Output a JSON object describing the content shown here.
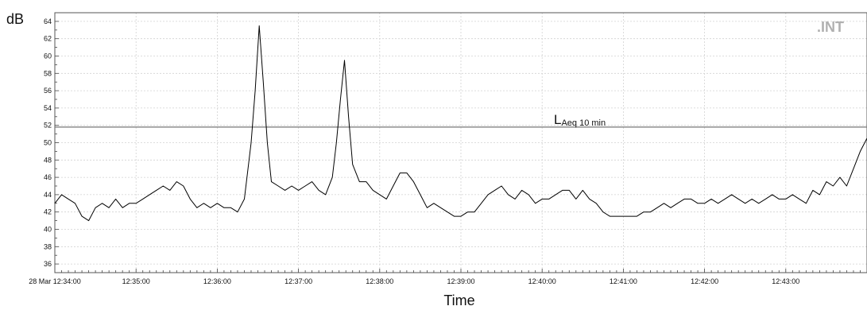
{
  "chart_data": {
    "type": "line",
    "ylabel": "dB",
    "xlabel": "Time",
    "ylim": [
      35,
      65
    ],
    "y_ticks": [
      36,
      38,
      40,
      42,
      44,
      46,
      48,
      50,
      52,
      54,
      56,
      58,
      60,
      62,
      64
    ],
    "x_range": [
      "12:34:00",
      "12:44:00"
    ],
    "x_ticks": [
      {
        "time": "12:34:00",
        "label": "28 Mar 12:34:00"
      },
      {
        "time": "12:35:00",
        "label": "12:35:00"
      },
      {
        "time": "12:36:00",
        "label": "12:36:00"
      },
      {
        "time": "12:37:00",
        "label": "12:37:00"
      },
      {
        "time": "12:38:00",
        "label": "12:38:00"
      },
      {
        "time": "12:39:00",
        "label": "12:39:00"
      },
      {
        "time": "12:40:00",
        "label": "12:40:00"
      },
      {
        "time": "12:41:00",
        "label": "12:41:00"
      },
      {
        "time": "12:42:00",
        "label": "12:42:00"
      },
      {
        "time": "12:43:00",
        "label": "12:43:00"
      }
    ],
    "grid": true,
    "series": [
      {
        "color": "#000000",
        "points": [
          [
            "12:34:00",
            43.0
          ],
          [
            "12:34:05",
            44.0
          ],
          [
            "12:34:10",
            43.5
          ],
          [
            "12:34:15",
            43.0
          ],
          [
            "12:34:20",
            41.5
          ],
          [
            "12:34:25",
            41.0
          ],
          [
            "12:34:30",
            42.5
          ],
          [
            "12:34:35",
            43.0
          ],
          [
            "12:34:40",
            42.5
          ],
          [
            "12:34:45",
            43.5
          ],
          [
            "12:34:50",
            42.5
          ],
          [
            "12:34:55",
            43.0
          ],
          [
            "12:35:00",
            43.0
          ],
          [
            "12:35:05",
            43.5
          ],
          [
            "12:35:10",
            44.0
          ],
          [
            "12:35:15",
            44.5
          ],
          [
            "12:35:20",
            45.0
          ],
          [
            "12:35:25",
            44.5
          ],
          [
            "12:35:30",
            45.5
          ],
          [
            "12:35:35",
            45.0
          ],
          [
            "12:35:40",
            43.5
          ],
          [
            "12:35:45",
            42.5
          ],
          [
            "12:35:50",
            43.0
          ],
          [
            "12:35:55",
            42.5
          ],
          [
            "12:36:00",
            43.0
          ],
          [
            "12:36:05",
            42.5
          ],
          [
            "12:36:10",
            42.5
          ],
          [
            "12:36:15",
            42.0
          ],
          [
            "12:36:20",
            43.5
          ],
          [
            "12:36:25",
            50.0
          ],
          [
            "12:36:28",
            56.0
          ],
          [
            "12:36:31",
            63.5
          ],
          [
            "12:36:34",
            57.0
          ],
          [
            "12:36:37",
            50.0
          ],
          [
            "12:36:40",
            45.5
          ],
          [
            "12:36:45",
            45.0
          ],
          [
            "12:36:50",
            44.5
          ],
          [
            "12:36:55",
            45.0
          ],
          [
            "12:37:00",
            44.5
          ],
          [
            "12:37:05",
            45.0
          ],
          [
            "12:37:10",
            45.5
          ],
          [
            "12:37:15",
            44.5
          ],
          [
            "12:37:20",
            44.0
          ],
          [
            "12:37:25",
            46.0
          ],
          [
            "12:37:28",
            50.0
          ],
          [
            "12:37:31",
            55.0
          ],
          [
            "12:37:34",
            59.5
          ],
          [
            "12:37:37",
            53.0
          ],
          [
            "12:37:40",
            47.5
          ],
          [
            "12:37:45",
            45.5
          ],
          [
            "12:37:50",
            45.5
          ],
          [
            "12:37:55",
            44.5
          ],
          [
            "12:38:00",
            44.0
          ],
          [
            "12:38:05",
            43.5
          ],
          [
            "12:38:10",
            45.0
          ],
          [
            "12:38:15",
            46.5
          ],
          [
            "12:38:20",
            46.5
          ],
          [
            "12:38:25",
            45.5
          ],
          [
            "12:38:30",
            44.0
          ],
          [
            "12:38:35",
            42.5
          ],
          [
            "12:38:40",
            43.0
          ],
          [
            "12:38:45",
            42.5
          ],
          [
            "12:38:50",
            42.0
          ],
          [
            "12:38:55",
            41.5
          ],
          [
            "12:39:00",
            41.5
          ],
          [
            "12:39:05",
            42.0
          ],
          [
            "12:39:10",
            42.0
          ],
          [
            "12:39:15",
            43.0
          ],
          [
            "12:39:20",
            44.0
          ],
          [
            "12:39:25",
            44.5
          ],
          [
            "12:39:30",
            45.0
          ],
          [
            "12:39:35",
            44.0
          ],
          [
            "12:39:40",
            43.5
          ],
          [
            "12:39:45",
            44.5
          ],
          [
            "12:39:50",
            44.0
          ],
          [
            "12:39:55",
            43.0
          ],
          [
            "12:40:00",
            43.5
          ],
          [
            "12:40:05",
            43.5
          ],
          [
            "12:40:10",
            44.0
          ],
          [
            "12:40:15",
            44.5
          ],
          [
            "12:40:20",
            44.5
          ],
          [
            "12:40:25",
            43.5
          ],
          [
            "12:40:30",
            44.5
          ],
          [
            "12:40:35",
            43.5
          ],
          [
            "12:40:40",
            43.0
          ],
          [
            "12:40:45",
            42.0
          ],
          [
            "12:40:50",
            41.5
          ],
          [
            "12:40:55",
            41.5
          ],
          [
            "12:41:00",
            41.5
          ],
          [
            "12:41:05",
            41.5
          ],
          [
            "12:41:10",
            41.5
          ],
          [
            "12:41:15",
            42.0
          ],
          [
            "12:41:20",
            42.0
          ],
          [
            "12:41:25",
            42.5
          ],
          [
            "12:41:30",
            43.0
          ],
          [
            "12:41:35",
            42.5
          ],
          [
            "12:41:40",
            43.0
          ],
          [
            "12:41:45",
            43.5
          ],
          [
            "12:41:50",
            43.5
          ],
          [
            "12:41:55",
            43.0
          ],
          [
            "12:42:00",
            43.0
          ],
          [
            "12:42:05",
            43.5
          ],
          [
            "12:42:10",
            43.0
          ],
          [
            "12:42:15",
            43.5
          ],
          [
            "12:42:20",
            44.0
          ],
          [
            "12:42:25",
            43.5
          ],
          [
            "12:42:30",
            43.0
          ],
          [
            "12:42:35",
            43.5
          ],
          [
            "12:42:40",
            43.0
          ],
          [
            "12:42:45",
            43.5
          ],
          [
            "12:42:50",
            44.0
          ],
          [
            "12:42:55",
            43.5
          ],
          [
            "12:43:00",
            43.5
          ],
          [
            "12:43:05",
            44.0
          ],
          [
            "12:43:10",
            43.5
          ],
          [
            "12:43:15",
            43.0
          ],
          [
            "12:43:20",
            44.5
          ],
          [
            "12:43:25",
            44.0
          ],
          [
            "12:43:30",
            45.5
          ],
          [
            "12:43:35",
            45.0
          ],
          [
            "12:43:40",
            46.0
          ],
          [
            "12:43:45",
            45.0
          ],
          [
            "12:43:50",
            47.0
          ],
          [
            "12:43:55",
            49.0
          ],
          [
            "12:44:00",
            50.5
          ]
        ]
      }
    ],
    "reference_lines": [
      {
        "y": 51.8,
        "label_main": "L",
        "label_sub": "Aeq 10 min"
      }
    ],
    "logo_text": ".INT"
  }
}
